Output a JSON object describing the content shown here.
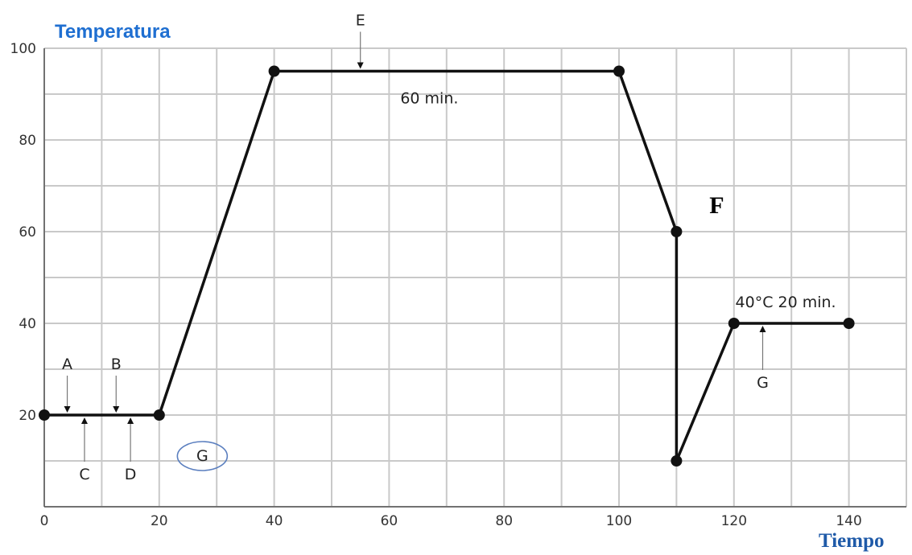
{
  "chart_data": {
    "type": "line",
    "title": "",
    "ylabel": "Temperatura",
    "xlabel": "Tiempo",
    "xlim": [
      0,
      150
    ],
    "ylim": [
      0,
      100
    ],
    "x_ticks": [
      0,
      20,
      40,
      60,
      80,
      100,
      120,
      140
    ],
    "y_ticks": [
      20,
      40,
      60,
      80,
      100
    ],
    "grid": true,
    "series": [
      {
        "name": "",
        "x": [
          0,
          20,
          40,
          100,
          110,
          110,
          120,
          140
        ],
        "y": [
          20,
          20,
          95,
          95,
          60,
          10,
          40,
          40
        ]
      }
    ],
    "annotations": [
      {
        "id": "A",
        "text": "A",
        "x": 4,
        "y": 20,
        "side": "above"
      },
      {
        "id": "B",
        "text": "B",
        "x": 12.5,
        "y": 20,
        "side": "above"
      },
      {
        "id": "C",
        "text": "C",
        "x": 7,
        "y": 20,
        "side": "below"
      },
      {
        "id": "D",
        "text": "D",
        "x": 15,
        "y": 20,
        "side": "below"
      },
      {
        "id": "E",
        "text": "E",
        "x": 55,
        "y": 95,
        "side": "above"
      },
      {
        "id": "G2",
        "text": "G",
        "x": 125,
        "y": 40,
        "side": "below"
      }
    ],
    "text_labels": [
      {
        "id": "sixty-min",
        "text": "60 min.",
        "x": 67,
        "y": 88
      },
      {
        "id": "forty-c",
        "text": "40°C  20 min.",
        "x": 129,
        "y": 43.5
      },
      {
        "id": "F",
        "text": "F",
        "x": 117,
        "y": 64
      },
      {
        "id": "G1",
        "text": "G",
        "x": 27.5,
        "y": 10,
        "circled": true
      }
    ],
    "colors": {
      "ylabel": "#1f6fd1",
      "xlabel": "#1f5aa8",
      "line": "#111111",
      "grid": "#c9c9c9",
      "g_circle": "#5b7fbf"
    }
  }
}
